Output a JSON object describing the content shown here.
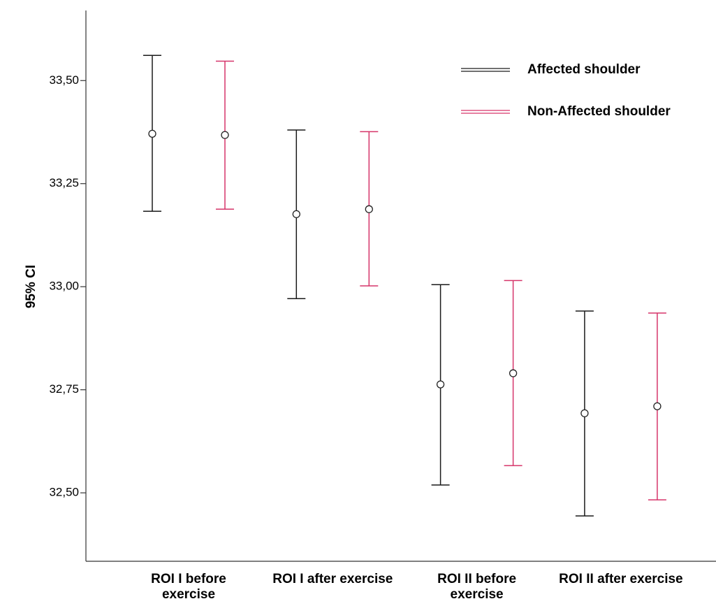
{
  "chart_data": {
    "type": "errorbar",
    "y_label": "95% CI",
    "categories": [
      "ROI I before exercise",
      "ROI I after exercise",
      "ROI II before exercise",
      "ROI II after exercise"
    ],
    "series": [
      {
        "name": "Affected shoulder",
        "color": "#1a1a1a",
        "values": [
          33.371,
          33.176,
          32.763,
          32.693
        ],
        "lower": [
          33.183,
          32.971,
          32.519,
          32.444
        ],
        "upper": [
          33.561,
          33.38,
          33.005,
          32.941
        ]
      },
      {
        "name": "Non-Affected shoulder",
        "color": "#d6356a",
        "values": [
          33.368,
          33.188,
          32.79,
          32.71
        ],
        "lower": [
          33.188,
          33.002,
          32.566,
          32.483
        ],
        "upper": [
          33.547,
          33.376,
          33.015,
          32.936
        ]
      }
    ],
    "ylim": [
      32.334,
      33.67
    ],
    "yticks": [
      {
        "value": 32.5,
        "label": "32,50"
      },
      {
        "value": 32.75,
        "label": "32,75"
      },
      {
        "value": 33.0,
        "label": "33,00"
      },
      {
        "value": 33.25,
        "label": "33,25"
      },
      {
        "value": 33.5,
        "label": "33,50"
      }
    ],
    "legend": "top-right"
  }
}
